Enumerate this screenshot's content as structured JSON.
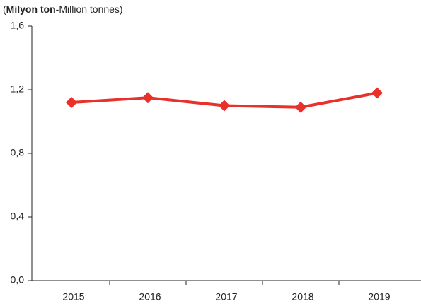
{
  "chart_data": {
    "type": "line",
    "unit_label": {
      "open": "(",
      "bold": "Milyon ton",
      "rest": "-Million tonnes)"
    },
    "categories": [
      "2015",
      "2016",
      "2017",
      "2018",
      "2019"
    ],
    "series": [
      {
        "color": "#e8312a",
        "values": [
          1.12,
          1.15,
          1.1,
          1.09,
          1.18
        ]
      }
    ],
    "ylim": [
      0,
      1.6
    ],
    "yticks": [
      {
        "value": 0,
        "label": "0,0"
      },
      {
        "value": 0.4,
        "label": "0,4"
      },
      {
        "value": 0.8,
        "label": "0,8"
      },
      {
        "value": 1.2,
        "label": "1,2"
      },
      {
        "value": 1.6,
        "label": "1,6"
      }
    ],
    "marker": "diamond"
  }
}
